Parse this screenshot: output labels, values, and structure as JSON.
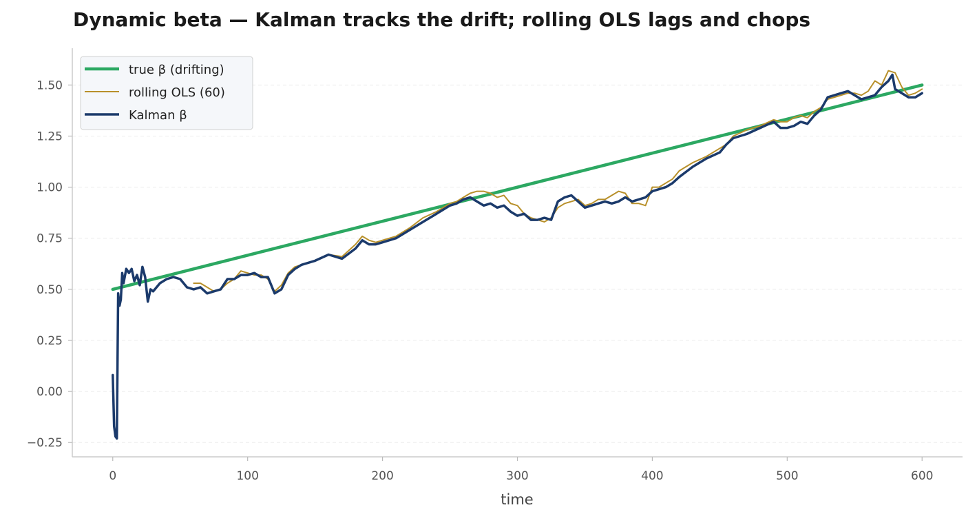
{
  "chart_data": {
    "type": "line",
    "title": "Dynamic beta — Kalman tracks the drift; rolling OLS lags and chops",
    "xlabel": "time",
    "ylabel": "",
    "xlim": [
      -30,
      630
    ],
    "ylim": [
      -0.32,
      1.68
    ],
    "x_ticks": [
      0,
      100,
      200,
      300,
      400,
      500,
      600
    ],
    "x_tick_labels": [
      "0",
      "100",
      "200",
      "300",
      "400",
      "500",
      "600"
    ],
    "y_ticks": [
      -0.25,
      0.0,
      0.25,
      0.5,
      0.75,
      1.0,
      1.25,
      1.5
    ],
    "y_tick_labels": [
      "−0.25",
      "0.00",
      "0.25",
      "0.50",
      "0.75",
      "1.00",
      "1.25",
      "1.50"
    ],
    "grid": "horizontal, dashed, light",
    "legend_position": "top-left",
    "series": [
      {
        "name": "true β (drifting)",
        "color": "#2ca862",
        "width": 4.5,
        "x": [
          0,
          600
        ],
        "y": [
          0.5,
          1.5
        ]
      },
      {
        "name": "rolling OLS (60)",
        "color": "#b8902a",
        "width": 2,
        "x": [
          60,
          65,
          70,
          75,
          80,
          85,
          90,
          95,
          100,
          105,
          110,
          115,
          120,
          125,
          130,
          135,
          140,
          150,
          160,
          170,
          180,
          185,
          190,
          195,
          200,
          210,
          220,
          230,
          240,
          250,
          255,
          260,
          265,
          270,
          275,
          280,
          285,
          290,
          295,
          300,
          305,
          310,
          315,
          320,
          325,
          330,
          335,
          340,
          345,
          350,
          355,
          360,
          365,
          370,
          375,
          380,
          385,
          390,
          395,
          400,
          405,
          410,
          415,
          420,
          430,
          440,
          450,
          455,
          460,
          470,
          480,
          490,
          495,
          500,
          505,
          510,
          515,
          520,
          525,
          530,
          535,
          540,
          545,
          550,
          555,
          560,
          565,
          570,
          575,
          580,
          585,
          590,
          595,
          600
        ],
        "y": [
          0.53,
          0.53,
          0.51,
          0.49,
          0.5,
          0.53,
          0.55,
          0.59,
          0.58,
          0.57,
          0.57,
          0.55,
          0.49,
          0.52,
          0.58,
          0.61,
          0.62,
          0.64,
          0.67,
          0.66,
          0.72,
          0.76,
          0.74,
          0.73,
          0.74,
          0.76,
          0.8,
          0.85,
          0.88,
          0.92,
          0.93,
          0.95,
          0.97,
          0.98,
          0.98,
          0.97,
          0.95,
          0.96,
          0.92,
          0.91,
          0.87,
          0.85,
          0.84,
          0.83,
          0.85,
          0.9,
          0.92,
          0.93,
          0.94,
          0.91,
          0.92,
          0.94,
          0.94,
          0.96,
          0.98,
          0.97,
          0.92,
          0.92,
          0.91,
          1.0,
          1.0,
          1.02,
          1.04,
          1.08,
          1.12,
          1.15,
          1.19,
          1.21,
          1.25,
          1.28,
          1.3,
          1.33,
          1.32,
          1.32,
          1.34,
          1.35,
          1.34,
          1.37,
          1.39,
          1.43,
          1.44,
          1.45,
          1.46,
          1.46,
          1.45,
          1.47,
          1.52,
          1.5,
          1.57,
          1.56,
          1.49,
          1.45,
          1.46,
          1.48
        ]
      },
      {
        "name": "Kalman β",
        "color": "#1b3a6b",
        "width": 3.5,
        "x": [
          0,
          1,
          2,
          3,
          4,
          5,
          6,
          7,
          8,
          10,
          12,
          14,
          16,
          18,
          20,
          22,
          24,
          26,
          28,
          30,
          35,
          40,
          45,
          50,
          55,
          60,
          65,
          70,
          75,
          80,
          85,
          90,
          95,
          100,
          105,
          110,
          115,
          120,
          125,
          130,
          135,
          140,
          150,
          160,
          170,
          180,
          185,
          190,
          195,
          200,
          210,
          220,
          230,
          240,
          250,
          255,
          260,
          265,
          270,
          275,
          280,
          285,
          290,
          295,
          300,
          305,
          310,
          315,
          320,
          325,
          330,
          335,
          340,
          345,
          350,
          355,
          360,
          365,
          370,
          375,
          380,
          385,
          390,
          395,
          400,
          405,
          410,
          415,
          420,
          430,
          440,
          450,
          455,
          460,
          470,
          480,
          490,
          495,
          500,
          505,
          510,
          515,
          520,
          525,
          530,
          535,
          540,
          545,
          550,
          555,
          560,
          565,
          570,
          575,
          578,
          580,
          585,
          590,
          595,
          600
        ],
        "y": [
          0.08,
          -0.17,
          -0.22,
          -0.23,
          0.48,
          0.42,
          0.45,
          0.58,
          0.53,
          0.6,
          0.58,
          0.6,
          0.54,
          0.57,
          0.52,
          0.61,
          0.56,
          0.44,
          0.5,
          0.49,
          0.53,
          0.55,
          0.56,
          0.55,
          0.51,
          0.5,
          0.51,
          0.48,
          0.49,
          0.5,
          0.55,
          0.55,
          0.57,
          0.57,
          0.58,
          0.56,
          0.56,
          0.48,
          0.5,
          0.57,
          0.6,
          0.62,
          0.64,
          0.67,
          0.65,
          0.7,
          0.74,
          0.72,
          0.72,
          0.73,
          0.75,
          0.79,
          0.83,
          0.87,
          0.91,
          0.92,
          0.94,
          0.95,
          0.93,
          0.91,
          0.92,
          0.9,
          0.91,
          0.88,
          0.86,
          0.87,
          0.84,
          0.84,
          0.85,
          0.84,
          0.93,
          0.95,
          0.96,
          0.93,
          0.9,
          0.91,
          0.92,
          0.93,
          0.92,
          0.93,
          0.95,
          0.93,
          0.94,
          0.95,
          0.98,
          0.99,
          1.0,
          1.02,
          1.05,
          1.1,
          1.14,
          1.17,
          1.21,
          1.24,
          1.26,
          1.29,
          1.32,
          1.29,
          1.29,
          1.3,
          1.32,
          1.31,
          1.35,
          1.38,
          1.44,
          1.45,
          1.46,
          1.47,
          1.45,
          1.43,
          1.44,
          1.45,
          1.49,
          1.52,
          1.55,
          1.48,
          1.46,
          1.44,
          1.44,
          1.46
        ]
      }
    ]
  }
}
